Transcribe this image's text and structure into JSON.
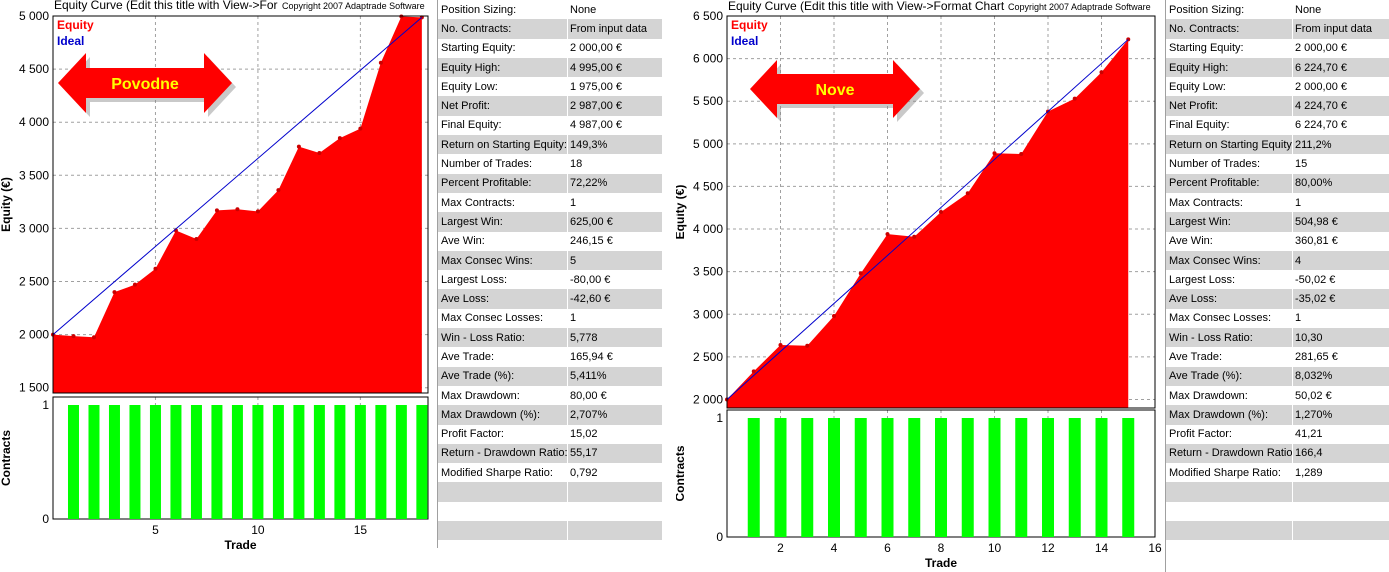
{
  "colors": {
    "equity_fill": "#ff0000",
    "ideal_line": "#0000cc",
    "contracts_bar": "#00ff00",
    "arrow": "#ff0000",
    "arrow_text": "#ffff00"
  },
  "left": {
    "chart_title": "Equity Curve (Edit this title with View->For",
    "copyright": "Copyright 2007  Adaptrade Software",
    "arrow_label": "Povodne",
    "stats": [
      {
        "label": "Position Sizing:",
        "value": "None"
      },
      {
        "label": "No. Contracts:",
        "value": "From input data"
      },
      {
        "label": "Starting Equity:",
        "value": "2 000,00 €"
      },
      {
        "label": "Equity High:",
        "value": "4 995,00 €"
      },
      {
        "label": "Equity Low:",
        "value": "1 975,00 €"
      },
      {
        "label": "Net Profit:",
        "value": "2 987,00 €"
      },
      {
        "label": "Final Equity:",
        "value": "4 987,00 €"
      },
      {
        "label": "Return on Starting Equity:",
        "value": "149,3%"
      },
      {
        "label": "Number of Trades:",
        "value": "18"
      },
      {
        "label": "Percent Profitable:",
        "value": "72,22%"
      },
      {
        "label": "Max Contracts:",
        "value": "1"
      },
      {
        "label": "Largest Win:",
        "value": "625,00 €"
      },
      {
        "label": "Ave Win:",
        "value": "246,15 €"
      },
      {
        "label": "Max Consec Wins:",
        "value": "5"
      },
      {
        "label": "Largest Loss:",
        "value": "-80,00 €"
      },
      {
        "label": "Ave Loss:",
        "value": "-42,60 €"
      },
      {
        "label": "Max Consec Losses:",
        "value": "1"
      },
      {
        "label": "Win - Loss Ratio:",
        "value": "5,778"
      },
      {
        "label": "Ave Trade:",
        "value": "165,94 €"
      },
      {
        "label": "Ave Trade (%):",
        "value": "5,411%"
      },
      {
        "label": "Max Drawdown:",
        "value": "80,00 €"
      },
      {
        "label": "Max Drawdown (%):",
        "value": "2,707%"
      },
      {
        "label": "Profit Factor:",
        "value": "15,02"
      },
      {
        "label": "Return - Drawdown Ratio:",
        "value": "55,17"
      },
      {
        "label": "Modified Sharpe Ratio:",
        "value": "0,792"
      },
      {
        "label": "",
        "value": ""
      },
      {
        "label": "",
        "value": ""
      },
      {
        "label": "",
        "value": ""
      }
    ]
  },
  "right": {
    "chart_title": "Equity Curve (Edit this title with View->Format Chart",
    "copyright": "Copyright 2007  Adaptrade Software",
    "arrow_label": "Nove",
    "stats": [
      {
        "label": "Position Sizing:",
        "value": "None"
      },
      {
        "label": "No. Contracts:",
        "value": "From input data"
      },
      {
        "label": "Starting Equity:",
        "value": "2 000,00 €"
      },
      {
        "label": "Equity High:",
        "value": "6 224,70 €"
      },
      {
        "label": "Equity Low:",
        "value": "2 000,00 €"
      },
      {
        "label": "Net Profit:",
        "value": "4 224,70 €"
      },
      {
        "label": "Final Equity:",
        "value": "6 224,70 €"
      },
      {
        "label": "Return on Starting Equity:",
        "value": "211,2%"
      },
      {
        "label": "Number of Trades:",
        "value": "15"
      },
      {
        "label": "Percent Profitable:",
        "value": "80,00%"
      },
      {
        "label": "Max Contracts:",
        "value": "1"
      },
      {
        "label": "Largest Win:",
        "value": "504,98 €"
      },
      {
        "label": "Ave Win:",
        "value": "360,81 €"
      },
      {
        "label": "Max Consec Wins:",
        "value": "4"
      },
      {
        "label": "Largest Loss:",
        "value": "-50,02 €"
      },
      {
        "label": "Ave Loss:",
        "value": "-35,02 €"
      },
      {
        "label": "Max Consec Losses:",
        "value": "1"
      },
      {
        "label": "Win - Loss Ratio:",
        "value": "10,30"
      },
      {
        "label": "Ave Trade:",
        "value": "281,65 €"
      },
      {
        "label": "Ave Trade (%):",
        "value": "8,032%"
      },
      {
        "label": "Max Drawdown:",
        "value": "50,02 €"
      },
      {
        "label": "Max Drawdown (%):",
        "value": "1,270%"
      },
      {
        "label": "Profit Factor:",
        "value": "41,21"
      },
      {
        "label": "Return - Drawdown Ratio:",
        "value": "166,4"
      },
      {
        "label": "Modified Sharpe Ratio:",
        "value": "1,289"
      },
      {
        "label": "",
        "value": ""
      },
      {
        "label": "",
        "value": ""
      },
      {
        "label": "",
        "value": ""
      },
      {
        "label": "",
        "value": ""
      }
    ]
  },
  "chart_data": [
    {
      "type": "area",
      "title": "Equity Curve (Edit this title with View->For",
      "xlabel": "Trade",
      "ylabel": "Equity (€)",
      "legend": [
        "Equity",
        "Ideal"
      ],
      "legend_placement": "top-left",
      "grid": true,
      "xlim": [
        0,
        18.3
      ],
      "ylim": [
        1450,
        5000
      ],
      "yticks": [
        1500,
        2000,
        2500,
        3000,
        3500,
        4000,
        4500,
        5000
      ],
      "ytick_labels": [
        "1 500",
        "2 000",
        "2 500",
        "3 000",
        "3 500",
        "4 000",
        "4 500",
        "5 000"
      ],
      "xticks": [
        5,
        10,
        15
      ],
      "series": [
        {
          "name": "Equity",
          "x": [
            0,
            1,
            2,
            3,
            4,
            5,
            6,
            7,
            8,
            9,
            10,
            11,
            12,
            13,
            14,
            15,
            16,
            17,
            18
          ],
          "values": [
            2000,
            1985,
            1975,
            2400,
            2470,
            2620,
            2980,
            2900,
            3170,
            3180,
            3160,
            3360,
            3770,
            3710,
            3850,
            3940,
            4560,
            4995,
            4987
          ]
        },
        {
          "name": "Ideal",
          "x": [
            0,
            18
          ],
          "values": [
            2000,
            4987
          ]
        }
      ],
      "contracts": {
        "ylabel": "Contracts",
        "ylim": [
          0,
          1
        ],
        "yticks": [
          0,
          1
        ],
        "x": [
          1,
          2,
          3,
          4,
          5,
          6,
          7,
          8,
          9,
          10,
          11,
          12,
          13,
          14,
          15,
          16,
          17,
          18
        ],
        "values": [
          1,
          1,
          1,
          1,
          1,
          1,
          1,
          1,
          1,
          1,
          1,
          1,
          1,
          1,
          1,
          1,
          1,
          1
        ]
      }
    },
    {
      "type": "area",
      "title": "Equity Curve (Edit this title with View->Format Chart",
      "xlabel": "Trade",
      "ylabel": "Equity (€)",
      "legend": [
        "Equity",
        "Ideal"
      ],
      "legend_placement": "top-left",
      "grid": true,
      "xlim": [
        0,
        16
      ],
      "ylim": [
        1900,
        6500
      ],
      "yticks": [
        2000,
        2500,
        3000,
        3500,
        4000,
        4500,
        5000,
        5500,
        6000,
        6500
      ],
      "ytick_labels": [
        "2 000",
        "2 500",
        "3 000",
        "3 500",
        "4 000",
        "4 500",
        "5 000",
        "5 500",
        "6 000",
        "6 500"
      ],
      "xticks": [
        2,
        4,
        6,
        8,
        10,
        12,
        14,
        16
      ],
      "series": [
        {
          "name": "Equity",
          "x": [
            0,
            1,
            2,
            3,
            4,
            5,
            6,
            7,
            8,
            9,
            10,
            11,
            12,
            13,
            14,
            15
          ],
          "values": [
            2000,
            2330,
            2640,
            2630,
            2980,
            3480,
            3940,
            3910,
            4200,
            4420,
            4890,
            4880,
            5380,
            5530,
            5840,
            6225
          ]
        },
        {
          "name": "Ideal",
          "x": [
            0,
            15
          ],
          "values": [
            2000,
            6225
          ]
        }
      ],
      "contracts": {
        "ylabel": "Contracts",
        "ylim": [
          0,
          1
        ],
        "yticks": [
          0,
          1
        ],
        "x": [
          1,
          2,
          3,
          4,
          5,
          6,
          7,
          8,
          9,
          10,
          11,
          12,
          13,
          14,
          15
        ],
        "values": [
          1,
          1,
          1,
          1,
          1,
          1,
          1,
          1,
          1,
          1,
          1,
          1,
          1,
          1,
          1
        ]
      }
    }
  ]
}
